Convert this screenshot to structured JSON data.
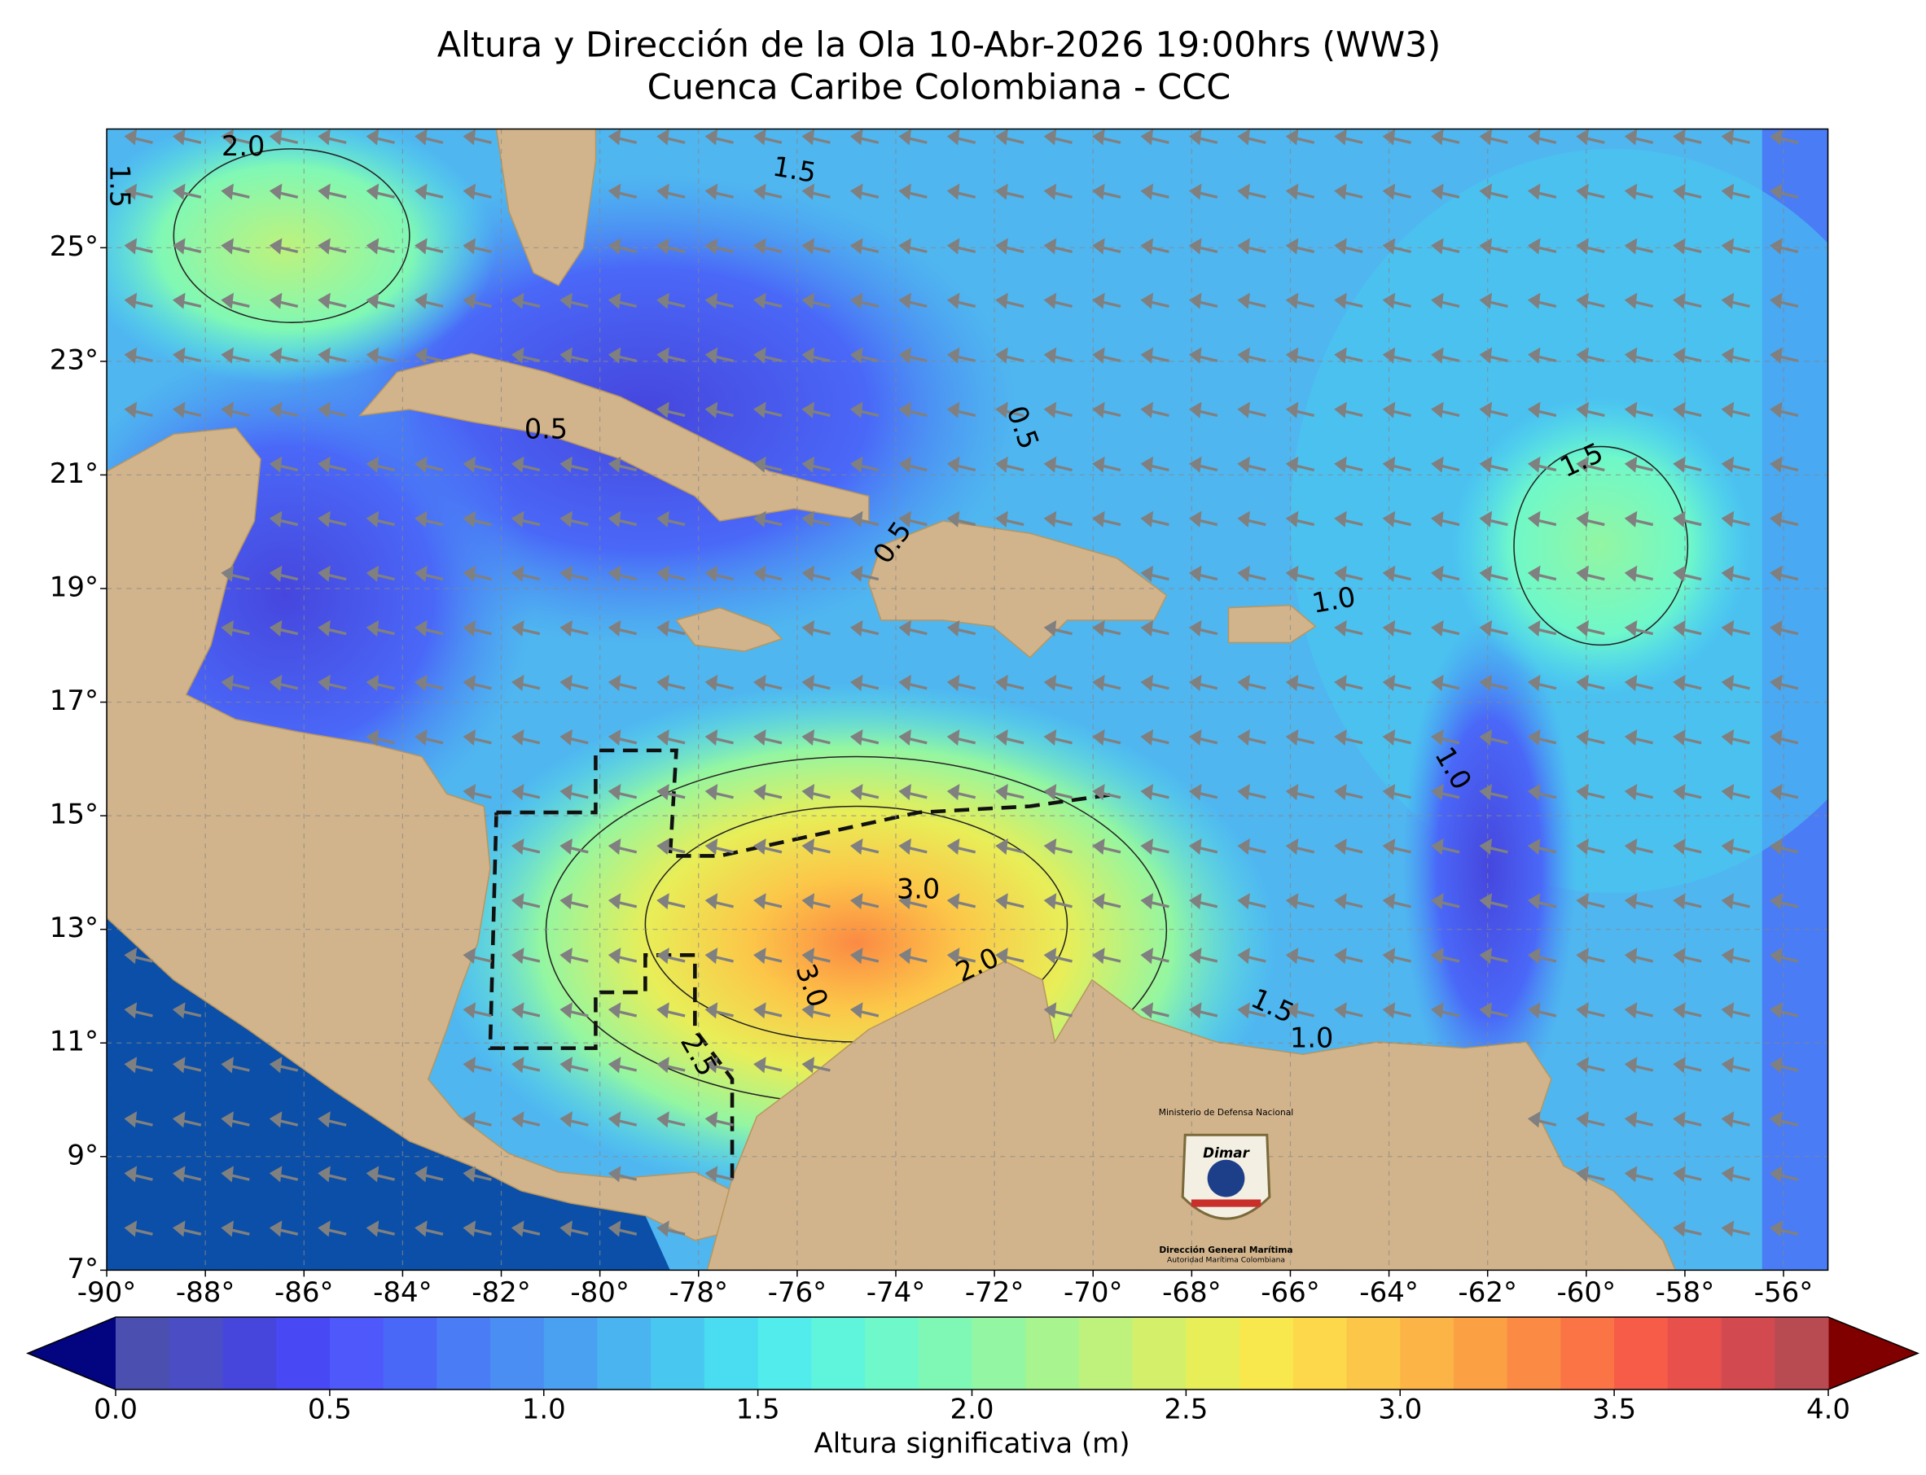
{
  "title": [
    "Altura y Dirección de la Ola 10-Abr-2026 19:00hrs (WW3)",
    "Cuenca Caribe Colombiana - CCC"
  ],
  "map": {
    "xlim": [
      -90,
      -55.1
    ],
    "ylim": [
      7,
      27.09
    ],
    "grid": true,
    "xticks": [
      {
        "value": -90,
        "label": "-90°"
      },
      {
        "value": -88,
        "label": "-88°"
      },
      {
        "value": -86,
        "label": "-86°"
      },
      {
        "value": -84,
        "label": "-84°"
      },
      {
        "value": -82,
        "label": "-82°"
      },
      {
        "value": -80,
        "label": "-80°"
      },
      {
        "value": -78,
        "label": "-78°"
      },
      {
        "value": -76,
        "label": "-76°"
      },
      {
        "value": -74,
        "label": "-74°"
      },
      {
        "value": -72,
        "label": "-72°"
      },
      {
        "value": -70,
        "label": "-70°"
      },
      {
        "value": -68,
        "label": "-68°"
      },
      {
        "value": -66,
        "label": "-66°"
      },
      {
        "value": -64,
        "label": "-64°"
      },
      {
        "value": -62,
        "label": "-62°"
      },
      {
        "value": -60,
        "label": "-60°"
      },
      {
        "value": -58,
        "label": "-58°"
      },
      {
        "value": -56,
        "label": "-56°"
      }
    ],
    "yticks": [
      {
        "value": 7,
        "label": "7°"
      },
      {
        "value": 9,
        "label": "9°"
      },
      {
        "value": 11,
        "label": "11°"
      },
      {
        "value": 13,
        "label": "13°"
      },
      {
        "value": 15,
        "label": "15°"
      },
      {
        "value": 17,
        "label": "17°"
      },
      {
        "value": 19,
        "label": "19°"
      },
      {
        "value": 21,
        "label": "21°"
      },
      {
        "value": 23,
        "label": "23°"
      },
      {
        "value": 25,
        "label": "25°"
      }
    ],
    "contour_labels": [
      {
        "value": 2,
        "label": "2.0"
      },
      {
        "value": 1.5,
        "label": "1.5"
      },
      {
        "value": 1.5,
        "label": "1.5"
      },
      {
        "value": 0.5,
        "label": "0.5"
      },
      {
        "value": 0.5,
        "label": "0.5"
      },
      {
        "value": 0.5,
        "label": "0.5"
      },
      {
        "value": 1.5,
        "label": "1.5"
      },
      {
        "value": 1,
        "label": "1.0"
      },
      {
        "value": 1,
        "label": "1.0"
      },
      {
        "value": 3,
        "label": "3.0"
      },
      {
        "value": 3,
        "label": "3.0"
      },
      {
        "value": 2.5,
        "label": "2.5"
      },
      {
        "value": 2,
        "label": "2.0"
      },
      {
        "value": 1.5,
        "label": "1.5"
      },
      {
        "value": 1,
        "label": "1.0"
      }
    ],
    "logo": [
      "Ministerio de Defensa Nacional",
      "Dimar",
      "Dirección General Marítima",
      "Autoridad Marítima Colombiana"
    ]
  },
  "colorbar": {
    "label": "Altura significativa (m)",
    "levels": [
      0,
      0.125,
      0.25,
      0.375,
      0.5,
      0.625,
      0.75,
      0.875,
      1,
      1.125,
      1.25,
      1.375,
      1.5,
      1.625,
      1.75,
      1.875,
      2,
      2.125,
      2.25,
      2.375,
      2.5,
      2.625,
      2.75,
      2.875,
      3,
      3.125,
      3.25,
      3.375,
      3.5,
      3.625,
      3.75,
      3.875,
      4
    ],
    "colors": [
      "#4b4fb0",
      "#4a4dc4",
      "#4646dd",
      "#4848f5",
      "#4f58fa",
      "#4a68f8",
      "#4a7cf5",
      "#4b8ef3",
      "#4aa0f1",
      "#4ab4f0",
      "#48c8f0",
      "#4adcf0",
      "#52ecec",
      "#5ff5dc",
      "#6ff8c9",
      "#80f8b5",
      "#93f6a2",
      "#a8f48f",
      "#bef27c",
      "#d4f06a",
      "#e8ee58",
      "#f8e84e",
      "#fcd84a",
      "#fcc648",
      "#fcb446",
      "#fca044",
      "#fb8a44",
      "#fa7446",
      "#f65c48",
      "#e8504c",
      "#d24a50",
      "#b84a52"
    ],
    "under_color": "#03047f",
    "over_color": "#800000",
    "ticks": [
      {
        "value": 0,
        "label": "0.0"
      },
      {
        "value": 0.5,
        "label": "0.5"
      },
      {
        "value": 1,
        "label": "1.0"
      },
      {
        "value": 1.5,
        "label": "1.5"
      },
      {
        "value": 2,
        "label": "2.0"
      },
      {
        "value": 2.5,
        "label": "2.5"
      },
      {
        "value": 3,
        "label": "3.0"
      },
      {
        "value": 3.5,
        "label": "3.5"
      },
      {
        "value": 4,
        "label": "4.0"
      }
    ]
  }
}
